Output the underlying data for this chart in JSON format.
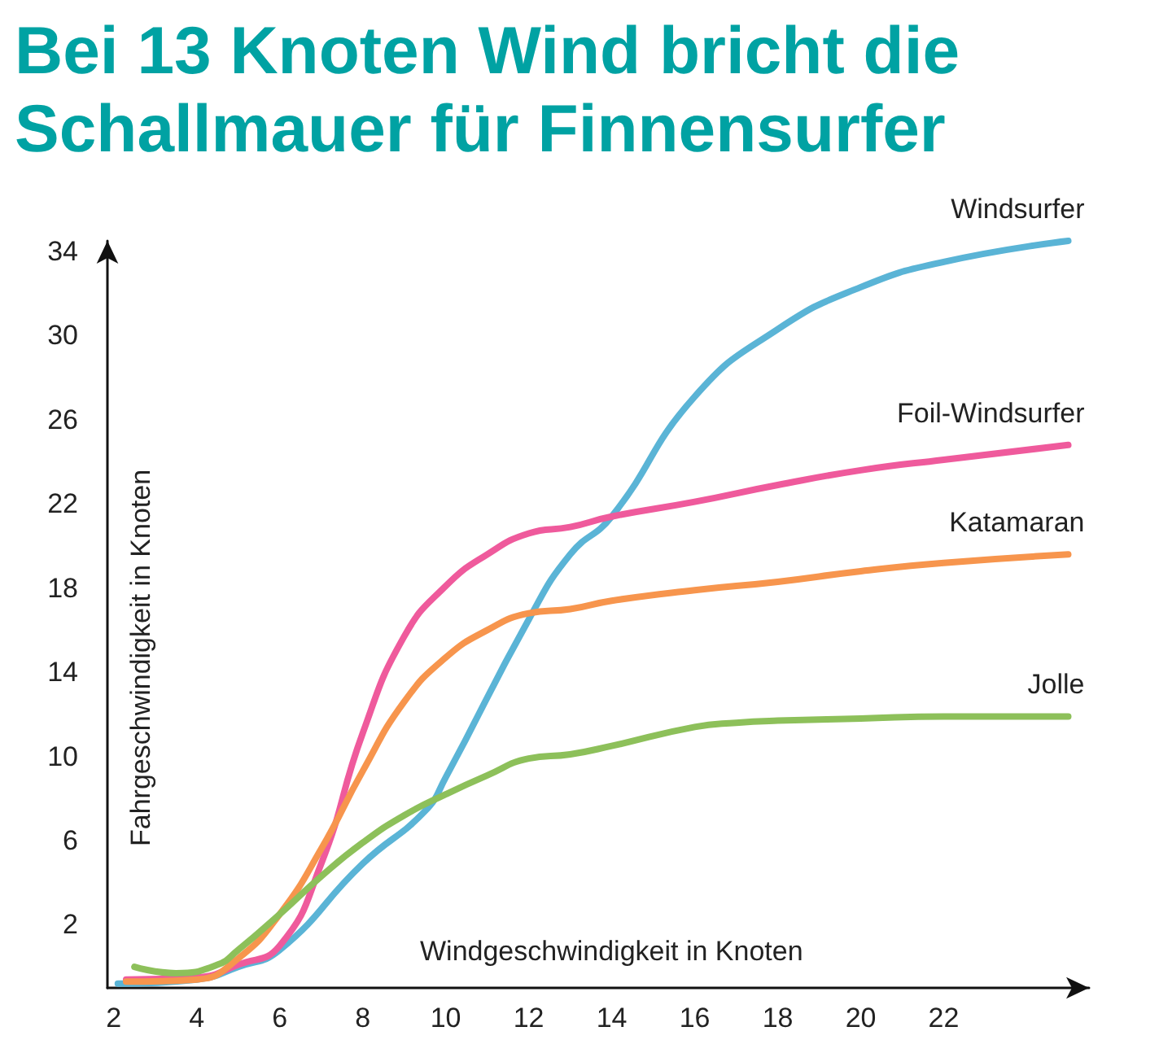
{
  "chart_data": {
    "type": "line",
    "title": "Bei 13 Knoten Wind bricht die Schallmauer für Finnensurfer",
    "xlabel": "Windgeschwindigkeit in Knoten",
    "ylabel": "Fahrgeschwindigkeit in Knoten",
    "xlim": [
      1.85,
      25.5
    ],
    "xticks": [
      2,
      4,
      6,
      8,
      10,
      12,
      14,
      16,
      18,
      20,
      22
    ],
    "ylim": [
      -1,
      34.5
    ],
    "yticks": [
      2,
      6,
      10,
      14,
      18,
      22,
      26,
      30,
      34
    ],
    "grid": false,
    "legend": false,
    "marker": "none",
    "line_style": "solid",
    "series": [
      {
        "name": "Windsurfer",
        "color": "#5ab4d6",
        "x": [
          2.1,
          4,
          5,
          6,
          8,
          9.5,
          10,
          12,
          13,
          14,
          16,
          18,
          20,
          22,
          25
        ],
        "values": [
          -0.8,
          -0.6,
          0,
          0.8,
          4.9,
          7.4,
          9,
          16.5,
          19.6,
          21.4,
          27.1,
          30.3,
          32.3,
          33.5,
          34.5
        ]
      },
      {
        "name": "Foil-Windsurfer",
        "color": "#ef5a9c",
        "x": [
          2.3,
          4,
          5,
          6,
          7,
          8,
          9,
          10,
          11,
          12,
          13,
          14,
          16,
          18,
          20,
          22,
          25
        ],
        "values": [
          -0.6,
          -0.5,
          0.1,
          1,
          4.9,
          11.1,
          15.7,
          18.1,
          19.6,
          20.6,
          20.9,
          21.4,
          22.1,
          22.9,
          23.6,
          24.1,
          24.8
        ]
      },
      {
        "name": "Katamaran",
        "color": "#f7954d",
        "x": [
          2.3,
          4,
          5,
          6,
          7,
          8,
          9,
          10,
          11,
          12,
          13,
          14,
          16,
          18,
          20,
          22,
          25
        ],
        "values": [
          -0.7,
          -0.6,
          0.4,
          2.5,
          5.6,
          9.3,
          12.6,
          14.7,
          16,
          16.8,
          17,
          17.4,
          17.9,
          18.3,
          18.8,
          19.2,
          19.6
        ]
      },
      {
        "name": "Jolle",
        "color": "#8dc05a",
        "x": [
          2.5,
          3.5,
          4.5,
          5,
          6,
          7,
          8,
          9,
          10,
          11,
          12,
          13,
          14,
          16,
          17,
          18,
          20,
          22,
          25
        ],
        "values": [
          0,
          -0.3,
          0.1,
          0.8,
          2.5,
          4.3,
          5.9,
          7.2,
          8.2,
          9.1,
          9.9,
          10.1,
          10.5,
          11.4,
          11.6,
          11.7,
          11.8,
          11.9,
          11.9
        ]
      }
    ]
  }
}
